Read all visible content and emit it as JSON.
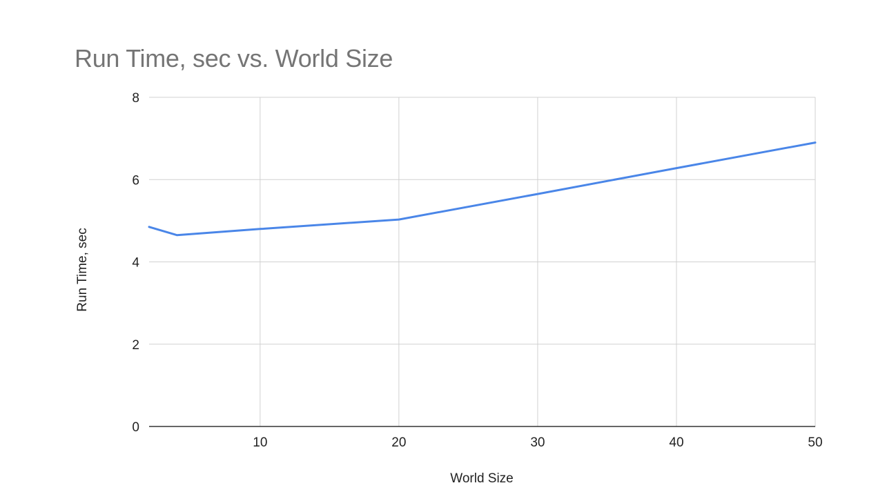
{
  "chart_data": {
    "type": "line",
    "title": "Run Time, sec vs. World Size",
    "xlabel": "World Size",
    "ylabel": "Run Time, sec",
    "xlim": [
      2,
      50
    ],
    "ylim": [
      0,
      8
    ],
    "x_ticks": [
      10,
      20,
      30,
      40,
      50
    ],
    "y_ticks": [
      0,
      2,
      4,
      6,
      8
    ],
    "grid": true,
    "legend": "none",
    "series": [
      {
        "color": "#4a86e8",
        "points": [
          {
            "x": 2,
            "y": 4.85
          },
          {
            "x": 4,
            "y": 4.65
          },
          {
            "x": 10,
            "y": 4.8
          },
          {
            "x": 20,
            "y": 5.03
          },
          {
            "x": 30,
            "y": 5.65
          },
          {
            "x": 40,
            "y": 6.28
          },
          {
            "x": 50,
            "y": 6.9
          }
        ]
      }
    ]
  }
}
